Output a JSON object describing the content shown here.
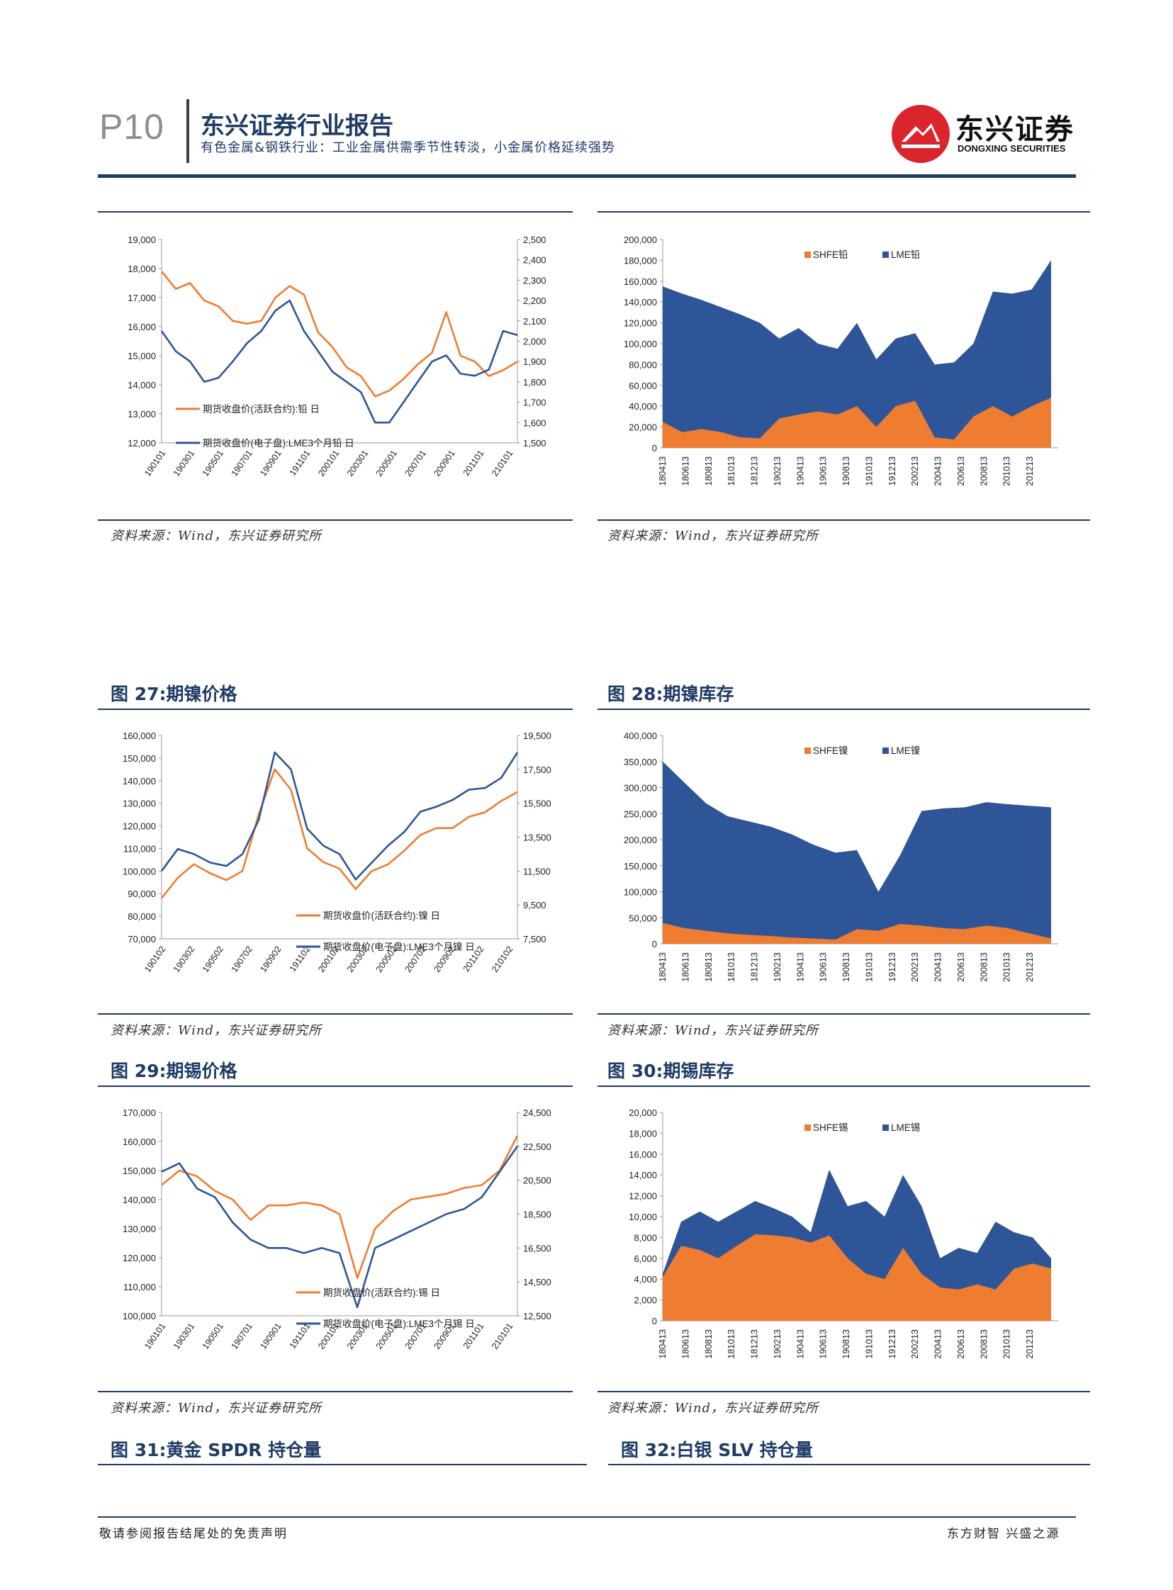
{
  "header": {
    "page_no": "P10",
    "title": "东兴证券行业报告",
    "subtitle": "有色金属&钢铁行业：工业金属供需季节性转淡，小金属价格延续强势",
    "logo_cn": "东兴证券",
    "logo_en": "DONGXING SECURITIES"
  },
  "source_text": "资料来源：Wind，东兴证券研究所",
  "figure_titles": {
    "f27": "图 27:期镍价格",
    "f28": "图 28:期镍库存",
    "f29": "图 29:期锡价格",
    "f30": "图 30:期锡库存",
    "f31": "图 31:黄金 SPDR 持仓量",
    "f32": "图 32:白银 SLV 持仓量"
  },
  "footer": {
    "left": "敬请参阅报告结尾处的免责声明",
    "right": "东方财智 兴盛之源"
  },
  "colors": {
    "orange": "#ee7d31",
    "blue": "#2e5597",
    "navy": "#1f3b66"
  },
  "chart_data": [
    {
      "type": "line",
      "id": "lead_price",
      "x_ticks": [
        "190101",
        "190301",
        "190501",
        "190701",
        "190901",
        "191101",
        "200101",
        "200301",
        "200501",
        "200701",
        "200901",
        "201101",
        "210101"
      ],
      "left_axis": {
        "ticks": [
          "12,000",
          "13,000",
          "14,000",
          "15,000",
          "16,000",
          "17,000",
          "18,000",
          "19,000"
        ],
        "ylim": [
          12000,
          19000
        ]
      },
      "right_axis": {
        "ticks": [
          "1,500",
          "1,600",
          "1,700",
          "1,800",
          "1,900",
          "2,000",
          "2,100",
          "2,200",
          "2,300",
          "2,400",
          "2,500"
        ],
        "ylim": [
          1500,
          2500
        ]
      },
      "series": [
        {
          "name": "期货收盘价(活跃合约):铅 日",
          "axis": "left",
          "color": "orange",
          "values": [
            17900,
            17300,
            17500,
            16900,
            16700,
            16200,
            16100,
            16200,
            17000,
            17400,
            17100,
            15800,
            15300,
            14600,
            14300,
            13600,
            13800,
            14200,
            14700,
            15100,
            16500,
            15000,
            14800,
            14300,
            14500,
            14800
          ]
        },
        {
          "name": "期货收盘价(电子盘):LME3个月铅 日",
          "axis": "right",
          "color": "blue",
          "values": [
            2050,
            1950,
            1900,
            1800,
            1820,
            1900,
            1990,
            2050,
            2150,
            2200,
            2050,
            1950,
            1850,
            1800,
            1750,
            1600,
            1600,
            1700,
            1800,
            1900,
            1930,
            1840,
            1830,
            1860,
            2050,
            2030
          ]
        }
      ]
    },
    {
      "type": "area",
      "id": "lead_stock",
      "x_ticks": [
        "180413",
        "180613",
        "180813",
        "181013",
        "181213",
        "190213",
        "190413",
        "190613",
        "190813",
        "191013",
        "191213",
        "200213",
        "200413",
        "200613",
        "200813",
        "201013",
        "201213"
      ],
      "y_ticks": [
        "0",
        "20,000",
        "40,000",
        "60,000",
        "80,000",
        "100,000",
        "120,000",
        "140,000",
        "160,000",
        "180,000",
        "200,000"
      ],
      "ylim": [
        0,
        200000
      ],
      "series": [
        {
          "name": "SHFE铅",
          "color": "orange",
          "values": [
            25000,
            15000,
            18000,
            15000,
            10000,
            9000,
            28000,
            32000,
            35000,
            32000,
            40000,
            20000,
            40000,
            45000,
            10000,
            8000,
            30000,
            40000,
            30000,
            40000,
            48000
          ]
        },
        {
          "name": "LME铅",
          "color": "blue",
          "values": [
            155000,
            148000,
            142000,
            135000,
            128000,
            120000,
            105000,
            115000,
            100000,
            95000,
            120000,
            85000,
            105000,
            110000,
            80000,
            82000,
            100000,
            150000,
            148000,
            152000,
            180000
          ]
        }
      ]
    },
    {
      "type": "line",
      "id": "nickel_price",
      "x_ticks": [
        "190102",
        "190302",
        "190502",
        "190702",
        "190902",
        "191102",
        "200102",
        "200302",
        "200502",
        "200702",
        "200902",
        "201102",
        "210102"
      ],
      "left_axis": {
        "ticks": [
          "70,000",
          "80,000",
          "90,000",
          "100,000",
          "110,000",
          "120,000",
          "130,000",
          "140,000",
          "150,000",
          "160,000"
        ],
        "ylim": [
          70000,
          160000
        ]
      },
      "right_axis": {
        "ticks": [
          "7,500",
          "9,500",
          "11,500",
          "13,500",
          "15,500",
          "17,500",
          "19,500"
        ],
        "ylim": [
          7500,
          19500
        ]
      },
      "series": [
        {
          "name": "期货收盘价(活跃合约):镍 日",
          "axis": "left",
          "color": "orange",
          "values": [
            88000,
            97000,
            103000,
            99000,
            96000,
            100000,
            125000,
            145000,
            136000,
            110000,
            104000,
            101000,
            92000,
            100000,
            103000,
            109000,
            116000,
            119000,
            119000,
            124000,
            126000,
            131000,
            135000
          ]
        },
        {
          "name": "期货收盘价(电子盘):LME3个月镍 日",
          "axis": "right",
          "color": "blue",
          "values": [
            11500,
            12800,
            12500,
            12000,
            11800,
            12500,
            14500,
            18500,
            17500,
            14000,
            13000,
            12500,
            11000,
            12000,
            13000,
            13800,
            15000,
            15300,
            15700,
            16300,
            16400,
            17000,
            18500
          ]
        }
      ]
    },
    {
      "type": "area",
      "id": "nickel_stock",
      "x_ticks": [
        "180413",
        "180613",
        "180813",
        "181013",
        "181213",
        "190213",
        "190413",
        "190613",
        "190813",
        "191013",
        "191213",
        "200213",
        "200413",
        "200613",
        "200813",
        "201013",
        "201213"
      ],
      "y_ticks": [
        "0",
        "50,000",
        "100,000",
        "150,000",
        "200,000",
        "250,000",
        "300,000",
        "350,000",
        "400,000"
      ],
      "ylim": [
        0,
        400000
      ],
      "series": [
        {
          "name": "SHFE镍",
          "color": "orange",
          "values": [
            40000,
            30000,
            25000,
            20000,
            17000,
            15000,
            12000,
            10000,
            8000,
            28000,
            25000,
            38000,
            35000,
            30000,
            28000,
            35000,
            30000,
            20000,
            10000
          ]
        },
        {
          "name": "LME镍",
          "color": "blue",
          "values": [
            350000,
            310000,
            270000,
            245000,
            235000,
            225000,
            210000,
            190000,
            175000,
            180000,
            100000,
            170000,
            255000,
            260000,
            262000,
            272000,
            268000,
            265000,
            262000
          ]
        }
      ]
    },
    {
      "type": "line",
      "id": "tin_price",
      "x_ticks": [
        "190101",
        "190301",
        "190501",
        "190701",
        "190901",
        "191101",
        "200101",
        "200301",
        "200501",
        "200701",
        "200901",
        "201101",
        "210101"
      ],
      "left_axis": {
        "ticks": [
          "100,000",
          "110,000",
          "120,000",
          "130,000",
          "140,000",
          "150,000",
          "160,000",
          "170,000"
        ],
        "ylim": [
          100000,
          170000
        ]
      },
      "right_axis": {
        "ticks": [
          "12,500",
          "14,500",
          "16,500",
          "18,500",
          "20,500",
          "22,500",
          "24,500"
        ],
        "ylim": [
          12500,
          24500
        ]
      },
      "series": [
        {
          "name": "期货收盘价(活跃合约):锡 日",
          "axis": "left",
          "color": "orange",
          "values": [
            145000,
            150000,
            148000,
            143000,
            140000,
            133000,
            138000,
            138000,
            139000,
            138000,
            135000,
            113000,
            130000,
            136000,
            140000,
            141000,
            142000,
            144000,
            145000,
            150000,
            162000
          ]
        },
        {
          "name": "期货收盘价(电子盘):LME3个月锡 日",
          "axis": "right",
          "color": "blue",
          "values": [
            21000,
            21500,
            20000,
            19500,
            18000,
            17000,
            16500,
            16500,
            16200,
            16500,
            16200,
            13000,
            16500,
            17000,
            17500,
            18000,
            18500,
            18800,
            19500,
            21000,
            22500
          ]
        }
      ]
    },
    {
      "type": "area",
      "id": "tin_stock",
      "x_ticks": [
        "180413",
        "180613",
        "180813",
        "181013",
        "181213",
        "190213",
        "190413",
        "190613",
        "190813",
        "191013",
        "191213",
        "200213",
        "200413",
        "200613",
        "200813",
        "201013",
        "201213"
      ],
      "y_ticks": [
        "0",
        "2,000",
        "4,000",
        "6,000",
        "8,000",
        "10,000",
        "12,000",
        "14,000",
        "16,000",
        "18,000",
        "20,000"
      ],
      "ylim": [
        0,
        20000
      ],
      "series": [
        {
          "name": "SHFE锡",
          "color": "orange",
          "values": [
            4200,
            7200,
            6800,
            6000,
            7200,
            8300,
            8200,
            8000,
            7500,
            8200,
            6000,
            4500,
            4000,
            7000,
            4500,
            3200,
            3000,
            3500,
            3000,
            5000,
            5500,
            5000
          ]
        },
        {
          "name": "LME锡",
          "color": "blue",
          "values": [
            4500,
            9500,
            10500,
            9500,
            10500,
            11500,
            10800,
            10000,
            8500,
            14500,
            11000,
            11500,
            10000,
            14000,
            11000,
            6000,
            7000,
            6500,
            9500,
            8500,
            8000,
            6000
          ]
        }
      ]
    }
  ]
}
